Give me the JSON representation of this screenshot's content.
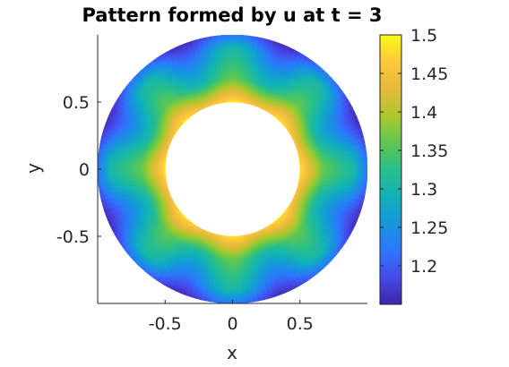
{
  "chart_data": {
    "type": "heatmap",
    "title": "Pattern formed by u at t = 3",
    "xlabel": "x",
    "ylabel": "y",
    "xlim": [
      -1,
      1
    ],
    "ylim": [
      -1,
      1
    ],
    "x_ticks": [
      "-0.5",
      "0",
      "0.5"
    ],
    "y_ticks": [
      "0.5",
      "0",
      "-0.5"
    ],
    "x_tick_values": [
      -0.5,
      0,
      0.5
    ],
    "y_tick_values": [
      0.5,
      0,
      -0.5
    ],
    "domain": {
      "shape": "annulus",
      "inner_radius": 0.5,
      "outer_radius": 1.0
    },
    "field": {
      "description_values": "u is highest near the inner ring and lowest near the outer ring, with 8-fold angular modulation",
      "inner_value": 1.47,
      "mid_value": 1.33,
      "outer_value": 1.22,
      "outer_min_value": 1.16,
      "angular_modes": 8
    },
    "colorbar": {
      "min": 1.15,
      "max": 1.5,
      "ticks": [
        "1.5",
        "1.45",
        "1.4",
        "1.35",
        "1.3",
        "1.25",
        "1.2"
      ],
      "tick_values": [
        1.5,
        1.45,
        1.4,
        1.35,
        1.3,
        1.25,
        1.2
      ],
      "colormap": "parula"
    },
    "grid": false
  }
}
